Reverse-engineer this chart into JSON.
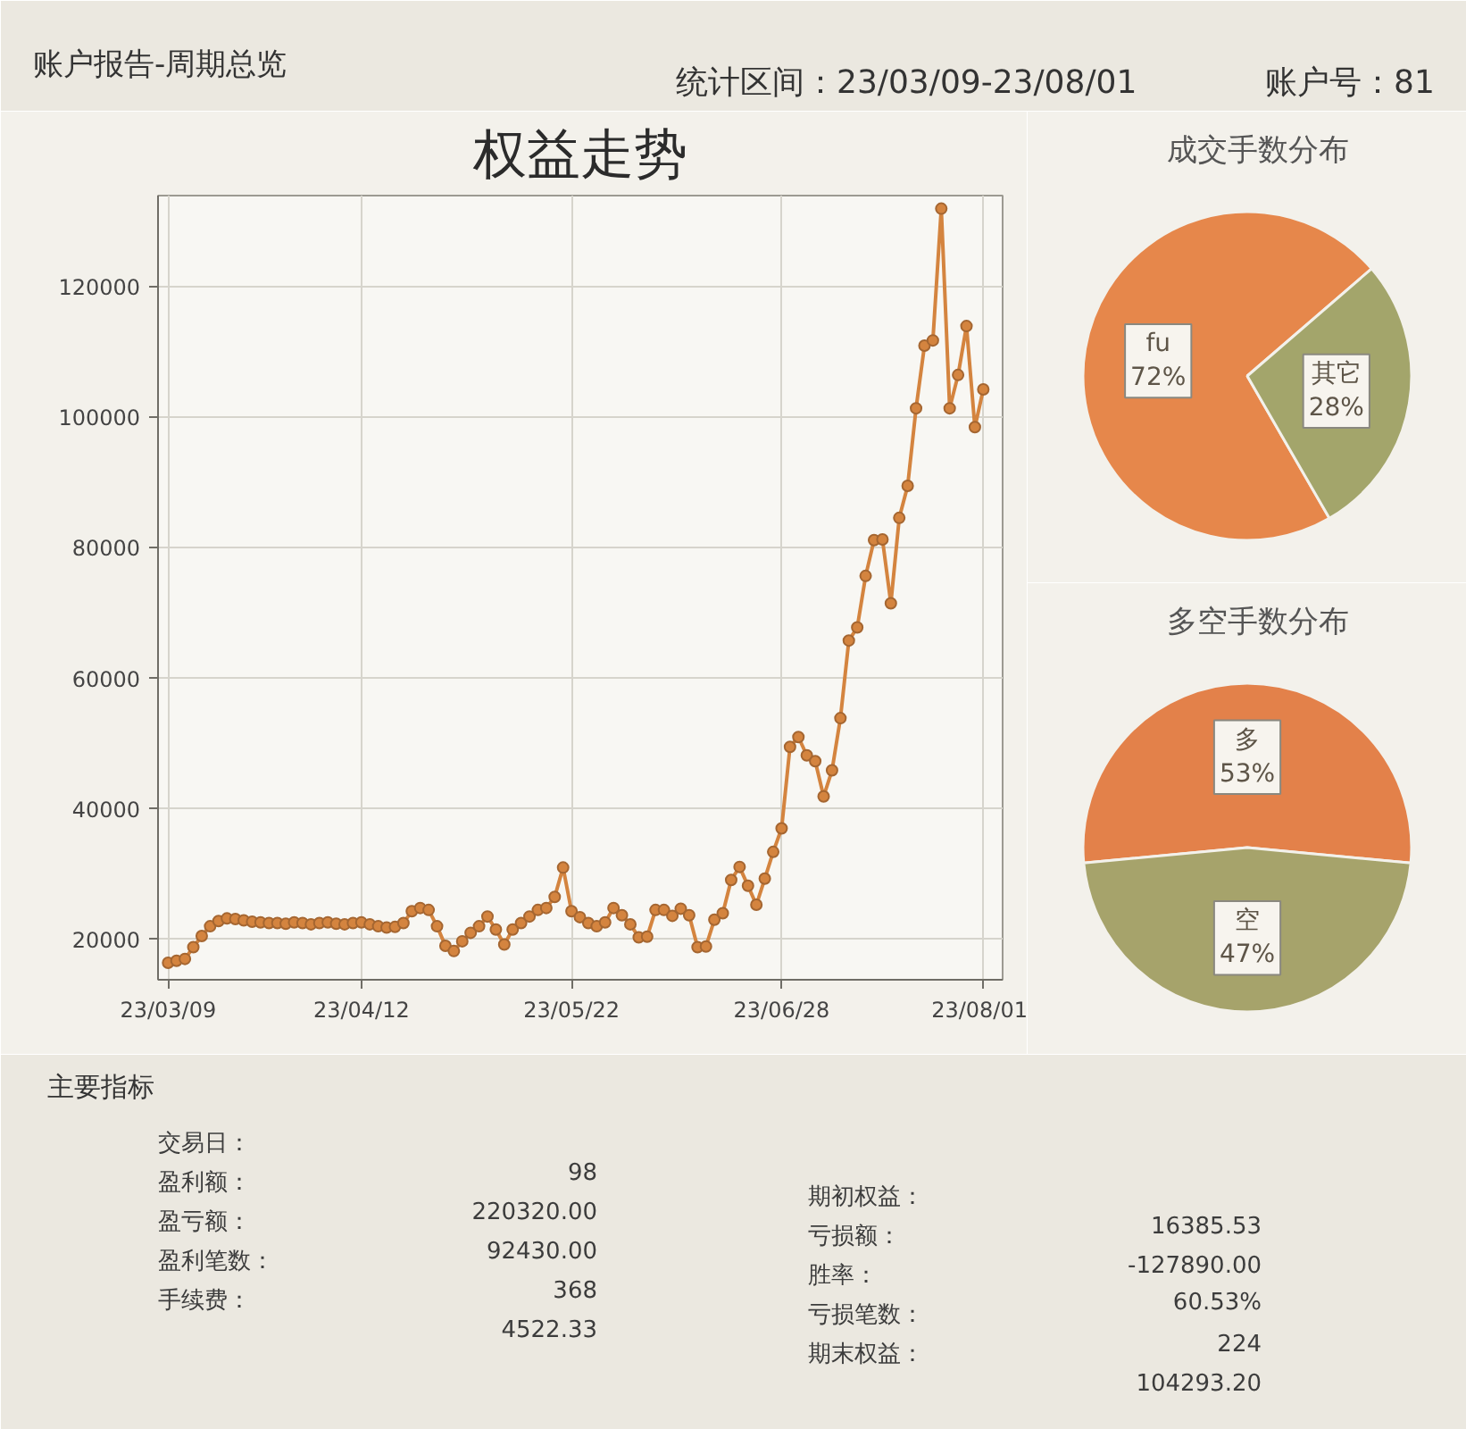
{
  "chart_data": [
    {
      "type": "other",
      "title": "账户报告-周期总览",
      "annotations": [
        "统计区间：23/03/09-23/08/01",
        "账户号：81"
      ]
    },
    {
      "type": "line",
      "title": "权益走势",
      "categories": [
        "23/03/09",
        null,
        null,
        null,
        null,
        null,
        null,
        null,
        null,
        null,
        null,
        null,
        null,
        null,
        null,
        null,
        null,
        null,
        null,
        null,
        null,
        null,
        null,
        "23/04/12",
        null,
        null,
        null,
        null,
        null,
        null,
        null,
        null,
        null,
        null,
        null,
        null,
        null,
        null,
        null,
        null,
        null,
        null,
        null,
        null,
        null,
        null,
        null,
        null,
        "23/05/22",
        null,
        null,
        null,
        null,
        null,
        null,
        null,
        null,
        null,
        null,
        null,
        null,
        null,
        null,
        null,
        null,
        null,
        null,
        null,
        null,
        null,
        null,
        null,
        null,
        "23/06/28",
        null,
        null,
        null,
        null,
        null,
        null,
        null,
        null,
        null,
        null,
        null,
        null,
        null,
        null,
        null,
        null,
        null,
        null,
        null,
        null,
        null,
        null,
        null,
        "23/08/01"
      ],
      "values": [
        16400,
        16700,
        17000,
        18800,
        20500,
        22000,
        22800,
        23200,
        23100,
        22900,
        22700,
        22600,
        22500,
        22500,
        22400,
        22600,
        22500,
        22300,
        22500,
        22600,
        22400,
        22300,
        22500,
        22600,
        22300,
        22000,
        21800,
        21900,
        22500,
        24300,
        24800,
        24500,
        22000,
        19000,
        18200,
        19700,
        21000,
        22000,
        23500,
        21500,
        19200,
        21500,
        22500,
        23500,
        24500,
        24800,
        26500,
        31000,
        24300,
        23400,
        22500,
        22000,
        22600,
        24800,
        23700,
        22300,
        20300,
        20400,
        24500,
        24500,
        23600,
        24700,
        23700,
        18800,
        18900,
        23000,
        24000,
        29100,
        31100,
        28200,
        25300,
        29300,
        33400,
        37000,
        49500,
        51000,
        48200,
        47300,
        41900,
        45900,
        53900,
        65800,
        67800,
        75700,
        81200,
        81300,
        71500,
        84600,
        89500,
        101400,
        111000,
        111800,
        132000,
        101400,
        106500,
        114000,
        98500,
        104300
      ],
      "color": "#d4843f",
      "marker": "circle",
      "ylim": [
        13800,
        134000
      ],
      "yticks": [
        20000,
        40000,
        60000,
        80000,
        100000,
        120000
      ],
      "grid": true
    },
    {
      "type": "pie",
      "title": "成交手数分布",
      "categories": [
        "fu",
        "其它"
      ],
      "values": [
        72,
        28
      ],
      "value_labels": [
        "72%",
        "28%"
      ],
      "colors": [
        "#e6874b",
        "#a3a56b"
      ]
    },
    {
      "type": "pie",
      "title": "多空手数分布",
      "categories": [
        "多",
        "空"
      ],
      "values": [
        53,
        47
      ],
      "value_labels": [
        "53%",
        "47%"
      ],
      "colors": [
        "#e3814a",
        "#a6a36b"
      ]
    },
    {
      "type": "other",
      "title": "主要指标",
      "annotations": [
        "交易日：",
        "98",
        "盈利额：",
        "220320.00",
        "盈亏额：",
        "92430.00",
        "盈利笔数：",
        "368",
        "手续费：",
        "4522.33",
        "期初权益：",
        "16385.53",
        "亏损额：",
        "-127890.00",
        "胜率：",
        "60.53%",
        "亏损笔数：",
        "224",
        "期末权益：",
        "104293.20"
      ]
    }
  ]
}
